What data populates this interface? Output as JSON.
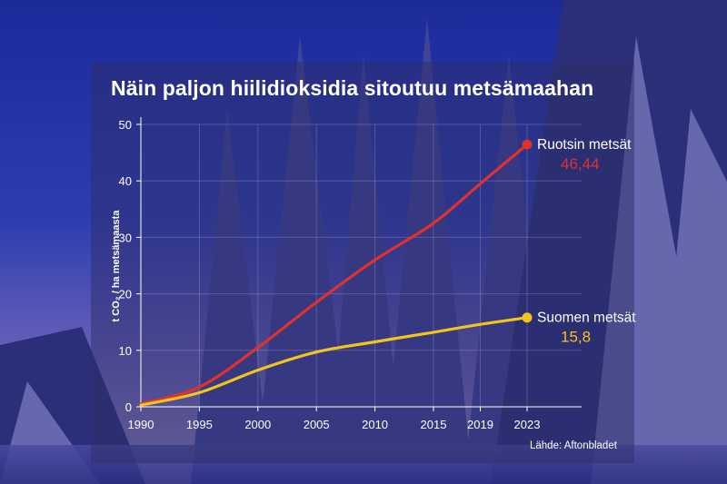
{
  "colors": {
    "ruotsi": "#e0312f",
    "suomi": "#f3c41c",
    "axis": "#ffffff"
  },
  "chart_data": {
    "type": "line",
    "title": "Näin paljon hiilidioksidia sitoutuu metsämaahan",
    "ylabel": "t CO₂ / ha metsämaasta",
    "xlabel": "",
    "x_ticks": [
      "1990",
      "1995",
      "2000",
      "2005",
      "2010",
      "2015",
      "2019",
      "2023"
    ],
    "y_ticks": [
      0,
      10,
      20,
      30,
      40,
      50
    ],
    "ylim": [
      0,
      50
    ],
    "grid": true,
    "series": [
      {
        "name": "Ruotsin metsät",
        "value_label": "46,44",
        "color": "#e0312f",
        "points": [
          [
            1990,
            0.5
          ],
          [
            1995,
            3.5
          ],
          [
            2000,
            10.5
          ],
          [
            2005,
            18.5
          ],
          [
            2010,
            26
          ],
          [
            2015,
            32.5
          ],
          [
            2019,
            39.5
          ],
          [
            2023,
            46.44
          ]
        ]
      },
      {
        "name": "Suomen metsät",
        "value_label": "15,8",
        "color": "#f3c41c",
        "points": [
          [
            1990,
            0.3
          ],
          [
            1995,
            2.5
          ],
          [
            2000,
            6.5
          ],
          [
            2005,
            9.7
          ],
          [
            2010,
            11.5
          ],
          [
            2015,
            13.2
          ],
          [
            2019,
            14.6
          ],
          [
            2023,
            15.8
          ]
        ]
      }
    ]
  },
  "source": "Lähde: Aftonbladet"
}
